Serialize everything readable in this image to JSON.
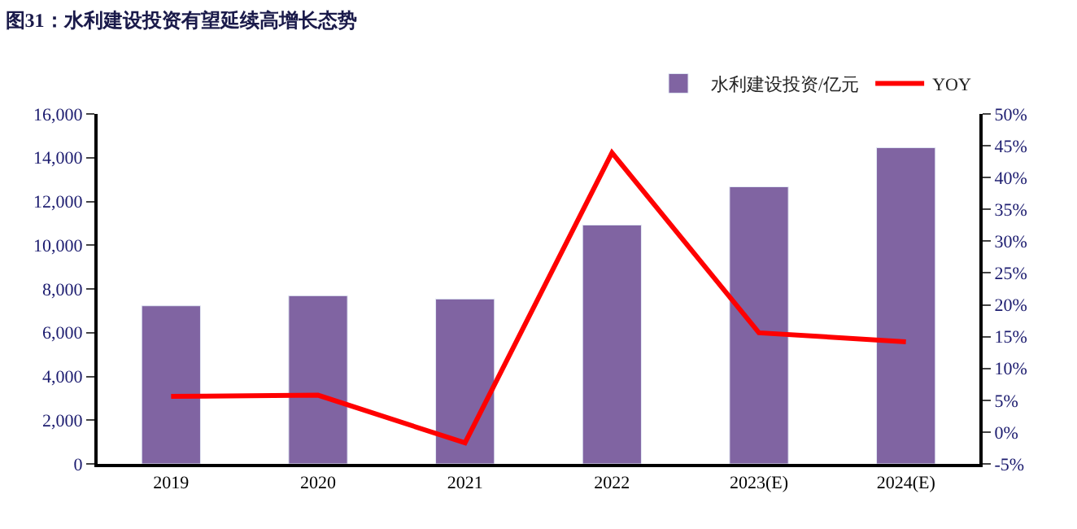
{
  "chart_data": {
    "type": "bar",
    "title": "图31：水利建设投资有望延续高增长态势",
    "categories": [
      "2019",
      "2020",
      "2021",
      "2022",
      "2023(E)",
      "2024(E)"
    ],
    "series": [
      {
        "name": "水利建设投资/亿元",
        "color": "#8064a2",
        "values": [
          7230,
          7690,
          7540,
          10920,
          12670,
          14460
        ]
      },
      {
        "name": "YOY",
        "type": "line",
        "axis": "y2",
        "color": "#ff0000",
        "values": [
          5.6,
          5.8,
          -1.7,
          43.9,
          15.6,
          14.2
        ]
      }
    ],
    "ylim": [
      0,
      16000
    ],
    "yticks": [
      0,
      {
        "value": 2000,
        "label": "2,000"
      },
      {
        "value": 4000,
        "label": "4,000"
      },
      {
        "value": 6000,
        "label": "6,000"
      },
      {
        "value": 8000,
        "label": "8,000"
      },
      {
        "value": 10000,
        "label": "10,000"
      },
      {
        "value": 12000,
        "label": "12,000"
      },
      {
        "value": 14000,
        "label": "14,000"
      },
      {
        "value": 16000,
        "label": "16,000"
      }
    ],
    "y2lim": [
      -5,
      50
    ],
    "y2ticks": [
      {
        "value": -5,
        "label": "-5%"
      },
      {
        "value": 0,
        "label": "0%"
      },
      {
        "value": 5,
        "label": "5%"
      },
      {
        "value": 10,
        "label": "10%"
      },
      {
        "value": 15,
        "label": "15%"
      },
      {
        "value": 20,
        "label": "20%"
      },
      {
        "value": 25,
        "label": "25%"
      },
      {
        "value": 30,
        "label": "30%"
      },
      {
        "value": 35,
        "label": "35%"
      },
      {
        "value": 40,
        "label": "40%"
      },
      {
        "value": 45,
        "label": "45%"
      },
      {
        "value": 50,
        "label": "50%"
      }
    ],
    "legend": "top right",
    "marker": "none",
    "line_style": "solid"
  }
}
